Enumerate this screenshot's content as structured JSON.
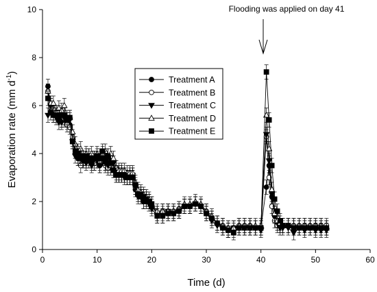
{
  "chart_data": {
    "type": "line",
    "xlabel": "Time (d)",
    "ylabel": "Evaporation rate (mm d",
    "ylabel_sup": "-1",
    "ylabel_close": ")",
    "xlim": [
      0,
      60
    ],
    "ylim": [
      0,
      10
    ],
    "xticks": [
      "0",
      "10",
      "20",
      "30",
      "40",
      "50",
      "60"
    ],
    "yticks": [
      "0",
      "2",
      "4",
      "6",
      "8",
      "10"
    ],
    "grid": false,
    "legend_position": "center-left",
    "annotation": {
      "text": "Flooding was applied on day 41",
      "x": 41,
      "y": 9.4
    },
    "x": [
      1,
      1.5,
      2,
      2.5,
      3,
      3.5,
      4,
      4.5,
      5,
      5.5,
      6,
      6.5,
      7,
      7.5,
      8,
      8.5,
      9,
      9.5,
      10,
      10.5,
      11,
      11.5,
      12,
      12.5,
      13,
      13.5,
      14,
      14.5,
      15,
      15.5,
      16,
      16.5,
      17,
      17.5,
      18,
      18.5,
      19,
      19.5,
      20,
      21,
      22,
      23,
      24,
      25,
      26,
      27,
      28,
      29,
      30,
      31,
      32,
      33,
      34,
      35,
      36,
      37,
      38,
      39,
      40,
      41,
      41.5,
      42,
      42.5,
      43,
      43.5,
      44,
      45,
      46,
      47,
      48,
      49,
      50,
      51,
      52
    ],
    "series": [
      {
        "name": "Treatment A",
        "marker": "filled-circle",
        "values": [
          6.8,
          6.0,
          5.7,
          5.7,
          5.6,
          5.4,
          5.5,
          5.3,
          5.2,
          4.6,
          4.1,
          3.8,
          3.8,
          3.7,
          3.7,
          3.9,
          3.6,
          3.6,
          3.7,
          3.5,
          3.9,
          3.6,
          3.6,
          3.4,
          3.3,
          3.2,
          3.1,
          3.1,
          3.1,
          3.0,
          3.0,
          3.1,
          2.5,
          2.3,
          2.2,
          2.0,
          2.1,
          2.0,
          1.8,
          1.5,
          1.5,
          1.5,
          1.5,
          1.6,
          1.8,
          1.8,
          1.9,
          1.8,
          1.5,
          1.3,
          1.1,
          0.9,
          0.8,
          0.8,
          0.9,
          0.9,
          0.9,
          0.9,
          0.9,
          2.6,
          3.5,
          2.2,
          1.4,
          1.1,
          1.0,
          1.0,
          1.0,
          0.9,
          0.9,
          0.9,
          0.9,
          0.9,
          0.9,
          0.9
        ]
      },
      {
        "name": "Treatment B",
        "marker": "open-circle",
        "values": [
          6.6,
          5.9,
          5.7,
          5.7,
          5.7,
          5.4,
          5.4,
          5.2,
          5.1,
          4.7,
          4.1,
          3.9,
          3.5,
          3.8,
          3.7,
          3.7,
          3.7,
          3.6,
          3.7,
          3.6,
          3.8,
          3.5,
          3.4,
          3.5,
          3.4,
          3.4,
          3.2,
          3.2,
          3.1,
          3.0,
          3.1,
          3.0,
          2.6,
          2.4,
          2.3,
          2.2,
          2.1,
          2.0,
          1.9,
          1.5,
          1.6,
          1.6,
          1.6,
          1.7,
          1.8,
          1.8,
          1.9,
          1.8,
          1.6,
          1.3,
          1.1,
          1.0,
          0.9,
          0.9,
          1.0,
          1.0,
          1.0,
          0.9,
          0.9,
          4.7,
          3.0,
          1.8,
          1.2,
          1.0,
          1.0,
          1.0,
          1.0,
          1.0,
          1.0,
          1.0,
          1.0,
          1.0,
          1.0,
          1.0
        ]
      },
      {
        "name": "Treatment C",
        "marker": "filled-triangle-down",
        "values": [
          5.6,
          6.0,
          5.6,
          5.5,
          5.3,
          5.3,
          5.5,
          5.4,
          5.4,
          4.5,
          3.9,
          3.8,
          3.8,
          3.7,
          3.6,
          3.7,
          3.5,
          3.8,
          3.7,
          3.5,
          3.8,
          3.6,
          3.5,
          3.7,
          3.6,
          3.1,
          3.1,
          3.1,
          3.0,
          3.0,
          3.0,
          3.1,
          2.6,
          2.2,
          2.3,
          2.0,
          2.0,
          1.9,
          1.7,
          1.4,
          1.4,
          1.6,
          1.5,
          1.6,
          1.8,
          1.8,
          1.9,
          1.8,
          1.5,
          1.2,
          1.0,
          0.9,
          0.8,
          0.9,
          0.9,
          0.9,
          0.9,
          0.9,
          0.8,
          4.8,
          3.7,
          2.3,
          1.4,
          1.1,
          0.9,
          0.9,
          0.9,
          0.7,
          0.9,
          0.8,
          0.9,
          0.8,
          0.8,
          0.8
        ]
      },
      {
        "name": "Treatment D",
        "marker": "open-triangle-up",
        "values": [
          6.6,
          6.1,
          6.1,
          5.7,
          5.9,
          5.8,
          6.0,
          5.5,
          5.5,
          4.9,
          4.4,
          4.1,
          4.2,
          3.8,
          4.0,
          3.9,
          4.0,
          3.8,
          4.0,
          3.9,
          4.0,
          4.1,
          3.9,
          4.0,
          3.8,
          3.4,
          3.3,
          3.3,
          3.3,
          3.2,
          3.2,
          3.2,
          2.8,
          2.5,
          2.4,
          2.3,
          2.2,
          2.1,
          1.9,
          1.6,
          1.6,
          1.6,
          1.6,
          1.7,
          1.9,
          1.9,
          2.0,
          1.9,
          1.6,
          1.4,
          1.1,
          1.0,
          0.9,
          0.9,
          1.0,
          1.0,
          1.0,
          1.0,
          1.0,
          5.6,
          4.2,
          2.5,
          1.5,
          1.2,
          1.1,
          1.0,
          1.0,
          1.0,
          1.0,
          1.0,
          1.0,
          1.0,
          1.0,
          0.9
        ]
      },
      {
        "name": "Treatment E",
        "marker": "filled-square",
        "values": [
          6.3,
          5.7,
          5.6,
          5.6,
          5.5,
          5.6,
          5.6,
          5.4,
          5.5,
          4.5,
          4.1,
          4.0,
          3.9,
          3.8,
          3.9,
          3.8,
          3.7,
          3.8,
          3.9,
          3.8,
          4.1,
          3.8,
          3.9,
          3.6,
          3.3,
          3.1,
          3.1,
          3.1,
          3.1,
          3.0,
          3.0,
          3.0,
          2.7,
          2.3,
          2.3,
          2.2,
          2.1,
          2.0,
          1.9,
          1.4,
          1.4,
          1.5,
          1.5,
          1.6,
          1.8,
          1.8,
          1.9,
          1.8,
          1.5,
          1.3,
          1.1,
          0.9,
          0.8,
          0.7,
          0.9,
          0.9,
          0.9,
          0.9,
          0.9,
          7.4,
          5.4,
          3.5,
          2.1,
          1.6,
          1.2,
          1.0,
          1.0,
          0.9,
          0.9,
          0.9,
          0.9,
          0.9,
          0.9,
          0.9
        ]
      }
    ],
    "error_margin": 0.3
  }
}
